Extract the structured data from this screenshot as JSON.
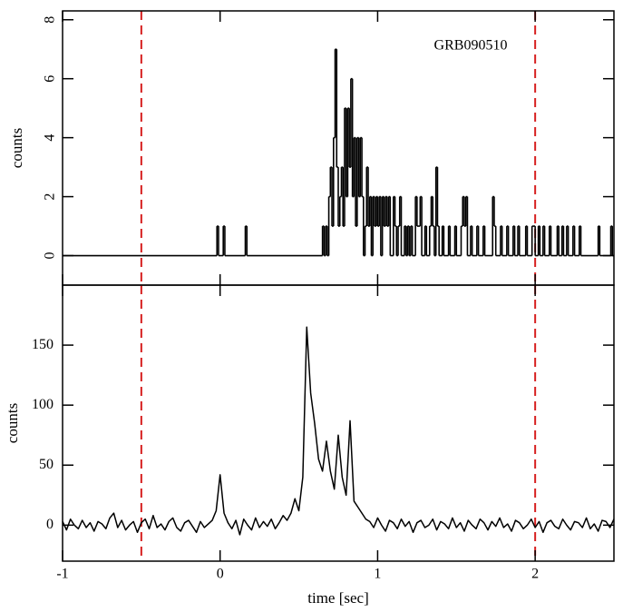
{
  "chart_data": [
    {
      "type": "step",
      "annotation": "GRB090510",
      "ylabel": "counts",
      "xlim": [
        -1,
        2.5
      ],
      "xticks": [
        -1,
        0,
        1,
        2
      ],
      "show_xtick_labels": false,
      "ylim": [
        -1,
        8.3
      ],
      "yticks": [
        0,
        2,
        4,
        6,
        8
      ],
      "rotate_ytick_labels": true,
      "vlines": [
        -0.5,
        2
      ],
      "vline_color": "#d62020",
      "color": "#000000",
      "x": [
        -1,
        -0.02,
        -0.01,
        0.02,
        0.03,
        0.16,
        0.17,
        0.65,
        0.66,
        0.67,
        0.68,
        0.69,
        0.7,
        0.71,
        0.72,
        0.73,
        0.74,
        0.75,
        0.76,
        0.77,
        0.78,
        0.79,
        0.8,
        0.81,
        0.82,
        0.83,
        0.84,
        0.85,
        0.86,
        0.87,
        0.88,
        0.89,
        0.9,
        0.91,
        0.92,
        0.93,
        0.94,
        0.95,
        0.96,
        0.97,
        0.98,
        0.99,
        1.0,
        1.01,
        1.02,
        1.03,
        1.04,
        1.05,
        1.06,
        1.07,
        1.08,
        1.1,
        1.11,
        1.12,
        1.13,
        1.14,
        1.15,
        1.17,
        1.18,
        1.19,
        1.2,
        1.21,
        1.22,
        1.24,
        1.25,
        1.27,
        1.28,
        1.3,
        1.31,
        1.33,
        1.34,
        1.35,
        1.36,
        1.37,
        1.38,
        1.39,
        1.41,
        1.42,
        1.45,
        1.46,
        1.49,
        1.5,
        1.53,
        1.54,
        1.55,
        1.56,
        1.57,
        1.59,
        1.6,
        1.63,
        1.64,
        1.67,
        1.68,
        1.73,
        1.74,
        1.75,
        1.78,
        1.79,
        1.82,
        1.83,
        1.86,
        1.87,
        1.89,
        1.9,
        1.94,
        1.95,
        1.98,
        2.0,
        2.02,
        2.03,
        2.05,
        2.06,
        2.09,
        2.1,
        2.14,
        2.15,
        2.17,
        2.18,
        2.2,
        2.21,
        2.24,
        2.25,
        2.28,
        2.29,
        2.4,
        2.41,
        2.48,
        2.49,
        2.5
      ],
      "values": [
        0,
        1,
        0,
        1,
        0,
        1,
        0,
        1,
        0,
        1,
        0,
        2,
        3,
        1,
        4,
        7,
        3,
        1,
        2,
        3,
        1,
        5,
        2,
        5,
        3,
        6,
        2,
        4,
        1,
        4,
        2,
        4,
        2,
        0,
        1,
        3,
        1,
        2,
        0,
        2,
        1,
        2,
        1,
        2,
        0,
        2,
        1,
        2,
        1,
        2,
        0,
        2,
        1,
        0,
        1,
        2,
        0,
        1,
        0,
        1,
        0,
        1,
        0,
        2,
        1,
        2,
        0,
        1,
        0,
        1,
        2,
        1,
        0,
        3,
        1,
        0,
        1,
        0,
        1,
        0,
        1,
        0,
        1,
        2,
        1,
        2,
        0,
        1,
        0,
        1,
        0,
        1,
        0,
        2,
        1,
        0,
        1,
        0,
        1,
        0,
        1,
        0,
        1,
        0,
        1,
        0,
        1,
        0,
        1,
        0,
        1,
        0,
        1,
        0,
        1,
        0,
        1,
        0,
        1,
        0,
        1,
        0,
        1,
        0,
        1,
        0,
        1,
        0,
        0
      ]
    },
    {
      "type": "line",
      "ylabel": "counts",
      "xlabel": "time [sec]",
      "xlim": [
        -1,
        2.5
      ],
      "xticks": [
        -1,
        0,
        1,
        2
      ],
      "show_xtick_labels": true,
      "ylim": [
        -30,
        200
      ],
      "yticks": [
        0,
        50,
        100,
        150
      ],
      "rotate_ytick_labels": false,
      "vlines": [
        -0.5,
        2
      ],
      "vline_color": "#d62020",
      "color": "#000000",
      "x": [
        -1,
        -0.975,
        -0.95,
        -0.925,
        -0.9,
        -0.875,
        -0.85,
        -0.825,
        -0.8,
        -0.775,
        -0.75,
        -0.725,
        -0.7,
        -0.675,
        -0.65,
        -0.625,
        -0.6,
        -0.575,
        -0.55,
        -0.525,
        -0.5,
        -0.475,
        -0.45,
        -0.425,
        -0.4,
        -0.375,
        -0.35,
        -0.325,
        -0.3,
        -0.275,
        -0.25,
        -0.225,
        -0.2,
        -0.175,
        -0.15,
        -0.125,
        -0.1,
        -0.075,
        -0.05,
        -0.025,
        0,
        0.025,
        0.05,
        0.075,
        0.1,
        0.125,
        0.15,
        0.175,
        0.2,
        0.225,
        0.25,
        0.275,
        0.3,
        0.325,
        0.35,
        0.375,
        0.4,
        0.425,
        0.45,
        0.475,
        0.5,
        0.525,
        0.55,
        0.575,
        0.6,
        0.625,
        0.65,
        0.675,
        0.7,
        0.725,
        0.75,
        0.775,
        0.8,
        0.825,
        0.85,
        0.875,
        0.9,
        0.925,
        0.95,
        0.975,
        1,
        1.025,
        1.05,
        1.075,
        1.1,
        1.125,
        1.15,
        1.175,
        1.2,
        1.225,
        1.25,
        1.275,
        1.3,
        1.325,
        1.35,
        1.375,
        1.4,
        1.425,
        1.45,
        1.475,
        1.5,
        1.525,
        1.55,
        1.575,
        1.6,
        1.625,
        1.65,
        1.675,
        1.7,
        1.725,
        1.75,
        1.775,
        1.8,
        1.825,
        1.85,
        1.875,
        1.9,
        1.925,
        1.95,
        1.975,
        2,
        2.025,
        2.05,
        2.075,
        2.1,
        2.125,
        2.15,
        2.175,
        2.2,
        2.225,
        2.25,
        2.275,
        2.3,
        2.325,
        2.35,
        2.375,
        2.4,
        2.425,
        2.45,
        2.475,
        2.5
      ],
      "values": [
        3,
        -4,
        5,
        0,
        -3,
        4,
        -2,
        2,
        -5,
        3,
        1,
        -3,
        6,
        10,
        -2,
        4,
        -4,
        0,
        3,
        -6,
        2,
        5,
        -3,
        8,
        -2,
        1,
        -4,
        3,
        6,
        -2,
        -5,
        2,
        4,
        -1,
        -6,
        3,
        -2,
        1,
        4,
        12,
        42,
        10,
        2,
        -3,
        4,
        -8,
        5,
        0,
        -4,
        6,
        -2,
        3,
        -1,
        5,
        -3,
        2,
        8,
        4,
        10,
        22,
        12,
        40,
        165,
        110,
        85,
        55,
        45,
        70,
        45,
        30,
        75,
        40,
        25,
        87,
        20,
        15,
        10,
        5,
        3,
        -2,
        6,
        0,
        -5,
        4,
        2,
        -3,
        5,
        -1,
        3,
        -6,
        2,
        4,
        -2,
        0,
        5,
        -4,
        3,
        1,
        -3,
        6,
        -2,
        2,
        -5,
        4,
        0,
        -3,
        5,
        2,
        -4,
        3,
        -1,
        6,
        -2,
        1,
        -5,
        4,
        2,
        -3,
        0,
        5,
        -2,
        3,
        -6,
        2,
        4,
        -1,
        -3,
        5,
        0,
        -4,
        3,
        2,
        -2,
        6,
        -3,
        1,
        -5,
        4,
        3,
        -2,
        5
      ]
    }
  ]
}
